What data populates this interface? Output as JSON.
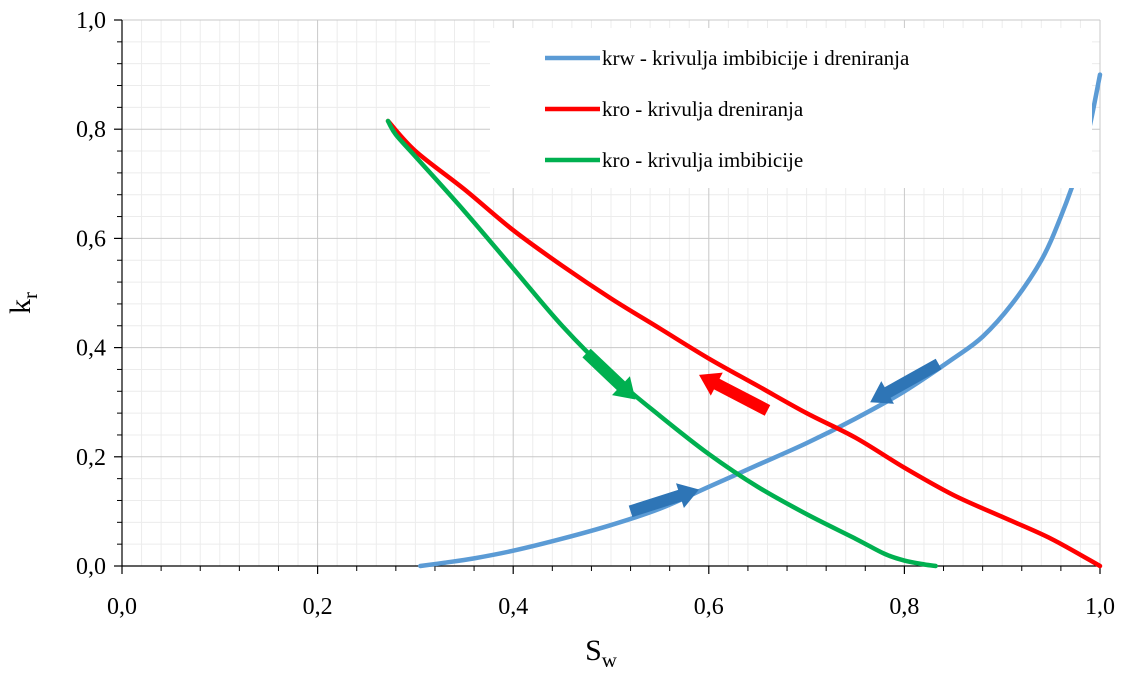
{
  "chart_data": {
    "type": "line",
    "title": "",
    "xlabel": "S",
    "xlabel_sub": "w",
    "ylabel": "k",
    "ylabel_sub": "r",
    "xlim": [
      0.0,
      1.0
    ],
    "ylim": [
      0.0,
      1.0
    ],
    "xticks": [
      0.0,
      0.2,
      0.4,
      0.6,
      0.8,
      1.0
    ],
    "yticks": [
      0.0,
      0.2,
      0.4,
      0.6,
      0.8,
      1.0
    ],
    "xtick_labels": [
      "0,0",
      "0,2",
      "0,4",
      "0,6",
      "0,8",
      "1,0"
    ],
    "ytick_labels": [
      "0,0",
      "0,2",
      "0,4",
      "0,6",
      "0,8",
      "1,0"
    ],
    "grid": true,
    "minor_grid": true,
    "legend_position": "top-right",
    "series": [
      {
        "name": "krw - krivulja imbibicije i dreniranja",
        "color": "#5B9BD5",
        "x": [
          0.305,
          0.33,
          0.36,
          0.4,
          0.45,
          0.5,
          0.55,
          0.6,
          0.65,
          0.7,
          0.75,
          0.8,
          0.85,
          0.88,
          0.91,
          0.94,
          0.96,
          0.98,
          0.99,
          1.0
        ],
        "y": [
          0.0,
          0.006,
          0.014,
          0.028,
          0.05,
          0.075,
          0.105,
          0.145,
          0.185,
          0.225,
          0.27,
          0.32,
          0.38,
          0.42,
          0.48,
          0.56,
          0.64,
          0.74,
          0.81,
          0.9
        ]
      },
      {
        "name": "kro - krivulja dreniranja",
        "color": "#FF0000",
        "x": [
          0.272,
          0.3,
          0.35,
          0.4,
          0.45,
          0.5,
          0.55,
          0.6,
          0.65,
          0.7,
          0.75,
          0.8,
          0.85,
          0.9,
          0.95,
          1.0
        ],
        "y": [
          0.815,
          0.76,
          0.69,
          0.615,
          0.55,
          0.49,
          0.435,
          0.38,
          0.33,
          0.28,
          0.235,
          0.18,
          0.13,
          0.09,
          0.05,
          0.0
        ]
      },
      {
        "name": "kro - krivulja imbibicije",
        "color": "#00B050",
        "x": [
          0.272,
          0.28,
          0.3,
          0.35,
          0.4,
          0.45,
          0.5,
          0.55,
          0.6,
          0.65,
          0.7,
          0.75,
          0.78,
          0.8,
          0.82,
          0.832
        ],
        "y": [
          0.815,
          0.79,
          0.75,
          0.65,
          0.545,
          0.44,
          0.35,
          0.275,
          0.205,
          0.145,
          0.095,
          0.05,
          0.022,
          0.01,
          0.003,
          0.0
        ]
      }
    ],
    "annotations": [
      {
        "type": "arrow",
        "color": "#2E75B6",
        "from": [
          0.52,
          0.1
        ],
        "to": [
          0.59,
          0.14
        ]
      },
      {
        "type": "arrow",
        "color": "#2E75B6",
        "from": [
          0.835,
          0.37
        ],
        "to": [
          0.765,
          0.3
        ]
      },
      {
        "type": "arrow",
        "color": "#FF0000",
        "from": [
          0.66,
          0.285
        ],
        "to": [
          0.59,
          0.35
        ]
      },
      {
        "type": "arrow",
        "color": "#00B050",
        "from": [
          0.475,
          0.39
        ],
        "to": [
          0.525,
          0.305
        ]
      }
    ]
  }
}
